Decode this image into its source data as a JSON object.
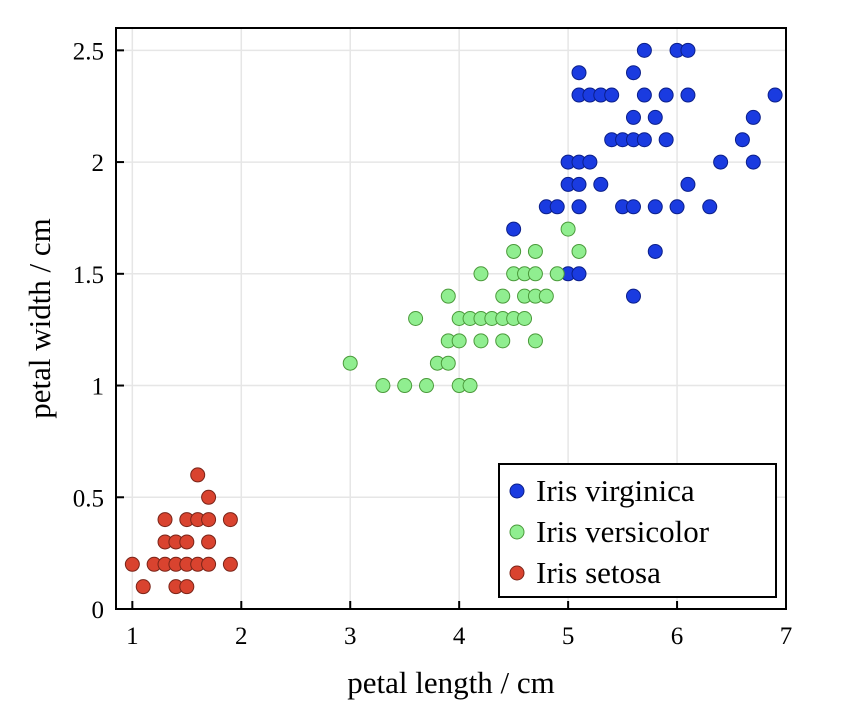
{
  "chart_data": {
    "type": "scatter",
    "title": "",
    "xlabel": "petal length / cm",
    "ylabel": "petal width / cm",
    "xlim": [
      0.85,
      7.0
    ],
    "ylim": [
      0,
      2.6
    ],
    "xticks": [
      1,
      2,
      3,
      4,
      5,
      6,
      7
    ],
    "yticks": [
      0,
      0.5,
      1,
      1.5,
      2,
      2.5
    ],
    "xtick_labels": [
      "1",
      "2",
      "3",
      "4",
      "5",
      "6",
      "7"
    ],
    "ytick_labels": [
      "0",
      "0.5",
      "1",
      "1.5",
      "2",
      "2.5"
    ],
    "grid": true,
    "legend_position": "bottom-right",
    "series": [
      {
        "name": "Iris virginica",
        "color": "#1a3be0",
        "points": [
          [
            5.7,
            2.5
          ],
          [
            6.0,
            2.5
          ],
          [
            6.1,
            2.5
          ],
          [
            5.1,
            2.4
          ],
          [
            5.6,
            2.4
          ],
          [
            6.9,
            2.3
          ],
          [
            5.1,
            2.3
          ],
          [
            5.2,
            2.3
          ],
          [
            5.3,
            2.3
          ],
          [
            5.4,
            2.3
          ],
          [
            5.7,
            2.3
          ],
          [
            5.9,
            2.3
          ],
          [
            6.1,
            2.3
          ],
          [
            6.7,
            2.2
          ],
          [
            5.6,
            2.2
          ],
          [
            5.8,
            2.2
          ],
          [
            5.4,
            2.1
          ],
          [
            5.5,
            2.1
          ],
          [
            5.6,
            2.1
          ],
          [
            5.7,
            2.1
          ],
          [
            5.9,
            2.1
          ],
          [
            6.6,
            2.1
          ],
          [
            5.0,
            2.0
          ],
          [
            5.1,
            2.0
          ],
          [
            5.2,
            2.0
          ],
          [
            6.4,
            2.0
          ],
          [
            6.7,
            2.0
          ],
          [
            5.0,
            1.9
          ],
          [
            5.1,
            1.9
          ],
          [
            5.3,
            1.9
          ],
          [
            6.1,
            1.9
          ],
          [
            4.8,
            1.8
          ],
          [
            4.9,
            1.8
          ],
          [
            5.1,
            1.8
          ],
          [
            5.5,
            1.8
          ],
          [
            5.6,
            1.8
          ],
          [
            5.8,
            1.8
          ],
          [
            6.0,
            1.8
          ],
          [
            6.3,
            1.8
          ],
          [
            4.5,
            1.7
          ],
          [
            5.8,
            1.6
          ],
          [
            5.0,
            1.5
          ],
          [
            5.1,
            1.5
          ],
          [
            5.6,
            1.4
          ]
        ]
      },
      {
        "name": "Iris versicolor",
        "color": "#90ee90",
        "points": [
          [
            5.0,
            1.7
          ],
          [
            4.5,
            1.6
          ],
          [
            4.7,
            1.6
          ],
          [
            5.1,
            1.6
          ],
          [
            4.2,
            1.5
          ],
          [
            4.5,
            1.5
          ],
          [
            4.6,
            1.5
          ],
          [
            4.7,
            1.5
          ],
          [
            4.9,
            1.5
          ],
          [
            3.9,
            1.4
          ],
          [
            4.4,
            1.4
          ],
          [
            4.6,
            1.4
          ],
          [
            4.7,
            1.4
          ],
          [
            4.8,
            1.4
          ],
          [
            3.6,
            1.3
          ],
          [
            4.0,
            1.3
          ],
          [
            4.1,
            1.3
          ],
          [
            4.2,
            1.3
          ],
          [
            4.3,
            1.3
          ],
          [
            4.4,
            1.3
          ],
          [
            4.5,
            1.3
          ],
          [
            4.6,
            1.3
          ],
          [
            3.9,
            1.2
          ],
          [
            4.0,
            1.2
          ],
          [
            4.2,
            1.2
          ],
          [
            4.4,
            1.2
          ],
          [
            4.7,
            1.2
          ],
          [
            3.0,
            1.1
          ],
          [
            3.8,
            1.1
          ],
          [
            3.9,
            1.1
          ],
          [
            3.3,
            1.0
          ],
          [
            3.5,
            1.0
          ],
          [
            3.7,
            1.0
          ],
          [
            4.0,
            1.0
          ],
          [
            4.1,
            1.0
          ]
        ]
      },
      {
        "name": "Iris setosa",
        "color": "#d9432f",
        "points": [
          [
            1.6,
            0.6
          ],
          [
            1.7,
            0.5
          ],
          [
            1.3,
            0.4
          ],
          [
            1.5,
            0.4
          ],
          [
            1.6,
            0.4
          ],
          [
            1.7,
            0.4
          ],
          [
            1.9,
            0.4
          ],
          [
            1.3,
            0.3
          ],
          [
            1.4,
            0.3
          ],
          [
            1.5,
            0.3
          ],
          [
            1.7,
            0.3
          ],
          [
            1.0,
            0.2
          ],
          [
            1.2,
            0.2
          ],
          [
            1.3,
            0.2
          ],
          [
            1.4,
            0.2
          ],
          [
            1.5,
            0.2
          ],
          [
            1.6,
            0.2
          ],
          [
            1.7,
            0.2
          ],
          [
            1.9,
            0.2
          ],
          [
            1.1,
            0.1
          ],
          [
            1.4,
            0.1
          ],
          [
            1.5,
            0.1
          ]
        ]
      }
    ],
    "legend_order": [
      "Iris virginica",
      "Iris versicolor",
      "Iris setosa"
    ]
  }
}
